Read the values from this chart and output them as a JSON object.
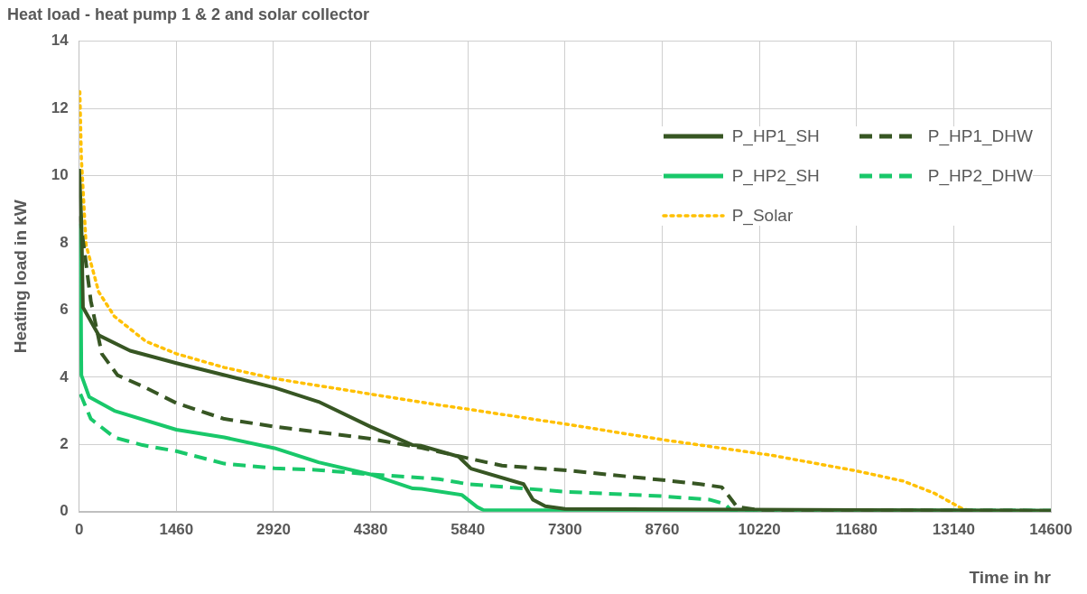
{
  "chart_data": {
    "type": "line",
    "title": "Heat load - heat pump 1 & 2 and solar collector",
    "xlabel": "Time in hr",
    "ylabel": "Heating load in kW",
    "xlim": [
      0,
      14600
    ],
    "xticks": [
      0,
      1460,
      2920,
      4380,
      5840,
      7300,
      8760,
      10220,
      11680,
      13140,
      14600
    ],
    "ylim": [
      0,
      14
    ],
    "yticks": [
      0,
      2,
      4,
      6,
      8,
      10,
      12,
      14
    ],
    "grid": true,
    "legend": "top right",
    "marker": "none",
    "series": [
      {
        "name": "P_HP1_SH",
        "color": "#375623",
        "line_style": "solid",
        "x": [
          0,
          33,
          57,
          293,
          765,
          1460,
          2935,
          3597,
          4375,
          5013,
          5143,
          5700,
          5887,
          6677,
          6817,
          7003,
          7300,
          14600
        ],
        "values": [
          10.2,
          8.66,
          6.08,
          5.25,
          4.79,
          4.42,
          3.69,
          3.27,
          2.53,
          1.98,
          1.96,
          1.64,
          1.28,
          0.82,
          0.36,
          0.16,
          0.08,
          0.03
        ]
      },
      {
        "name": "P_HP1_DHW",
        "color": "#375623",
        "line_style": "dashed",
        "x": [
          10,
          104,
          175,
          340,
          576,
          1000,
          1460,
          2180,
          2935,
          4375,
          5140,
          5933,
          6352,
          7328,
          8770,
          9328,
          9653,
          9746,
          9886,
          10220,
          14600
        ],
        "values": [
          8.8,
          7.37,
          6.27,
          4.7,
          4.06,
          3.69,
          3.23,
          2.76,
          2.53,
          2.17,
          1.9,
          1.55,
          1.37,
          1.23,
          0.94,
          0.82,
          0.73,
          0.5,
          0.14,
          0.05,
          0.03
        ]
      },
      {
        "name": "P_HP2_SH",
        "color": "#19c86a",
        "line_style": "solid",
        "x": [
          19,
          33,
          151,
          529,
          1460,
          2180,
          2935,
          3597,
          4375,
          5013,
          5143,
          5747,
          5980,
          6073,
          14600
        ],
        "values": [
          8.57,
          4.06,
          3.41,
          3.0,
          2.44,
          2.21,
          1.89,
          1.47,
          1.11,
          0.69,
          0.68,
          0.5,
          0.14,
          0.05,
          0.03
        ]
      },
      {
        "name": "P_HP2_DHW",
        "color": "#19c86a",
        "line_style": "dashed",
        "x": [
          19,
          175,
          529,
          953,
          1460,
          2180,
          2935,
          3597,
          4375,
          5404,
          5840,
          7328,
          8770,
          9467,
          9700,
          9793,
          14600
        ],
        "values": [
          3.5,
          2.76,
          2.21,
          1.98,
          1.8,
          1.43,
          1.29,
          1.24,
          1.11,
          0.97,
          0.82,
          0.59,
          0.46,
          0.36,
          0.23,
          0.05,
          0.03
        ]
      },
      {
        "name": "P_Solar",
        "color": "#ffc000",
        "line_style": "dotted",
        "x": [
          0,
          10,
          33,
          104,
          293,
          529,
          1000,
          1460,
          2180,
          2935,
          4375,
          5390,
          5840,
          7328,
          8770,
          10397,
          11685,
          12382,
          12847,
          13266,
          13450,
          14600
        ],
        "values": [
          12.5,
          12.49,
          10.5,
          7.93,
          6.54,
          5.81,
          5.07,
          4.7,
          4.29,
          3.96,
          3.5,
          3.18,
          3.05,
          2.6,
          2.14,
          1.68,
          1.21,
          0.91,
          0.55,
          0.09,
          0,
          0
        ]
      }
    ]
  }
}
